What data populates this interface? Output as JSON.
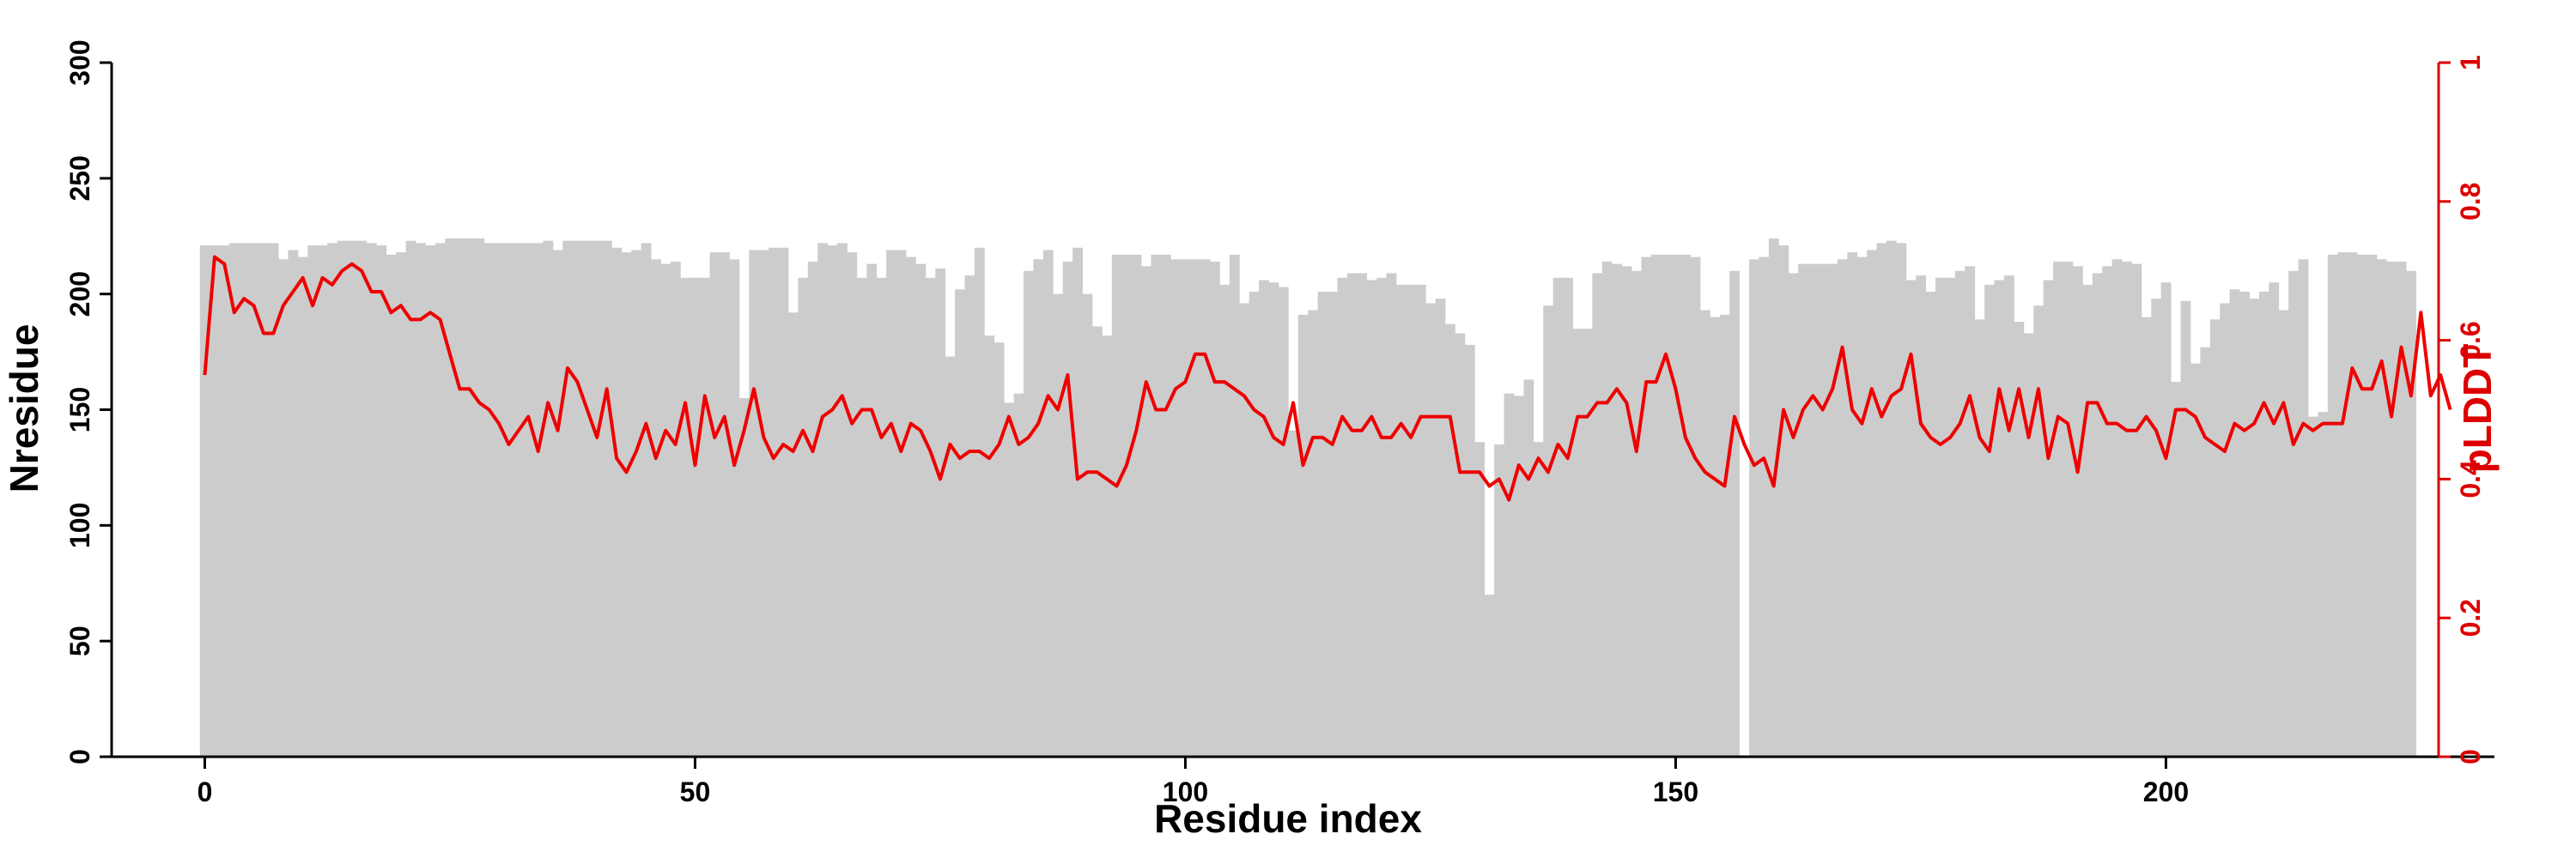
{
  "chart_data": {
    "type": "bar",
    "xlabel": "Residue index",
    "ylabel": "Nresidue",
    "y2label": "pLDDT",
    "xlim": [
      -9,
      234
    ],
    "ylim": [
      0,
      300
    ],
    "y2lim": [
      0,
      1
    ],
    "xticks": [
      0,
      50,
      100,
      150,
      200
    ],
    "yticks": [
      0,
      50,
      100,
      150,
      200,
      250,
      300
    ],
    "y2ticks": [
      0,
      0.2,
      0.4,
      0.6,
      0.8,
      1
    ],
    "xtick_labels": [
      "0",
      "50",
      "100",
      "150",
      "200"
    ],
    "ytick_labels": [
      "0",
      "50",
      "100",
      "150",
      "200",
      "250",
      "300"
    ],
    "y2tick_labels": [
      "0",
      "0.2",
      "0.4",
      "0.6",
      "0.8",
      "1"
    ],
    "colors": {
      "bars": "#cccccc",
      "line": "#ee0000",
      "axis": "#000000",
      "axis2": "#dd0000"
    },
    "series": [
      {
        "kind": "bar",
        "axis": "left",
        "x_start": 0,
        "values": [
          221,
          221,
          221,
          222,
          222,
          222,
          222,
          222,
          215,
          219,
          216,
          221,
          221,
          222,
          223,
          223,
          223,
          222,
          221,
          217,
          218,
          223,
          222,
          221,
          222,
          224,
          224,
          224,
          224,
          222,
          222,
          222,
          222,
          222,
          222,
          223,
          219,
          223,
          223,
          223,
          223,
          223,
          220,
          218,
          219,
          222,
          215,
          213,
          214,
          207,
          207,
          207,
          218,
          218,
          215,
          155,
          219,
          219,
          220,
          220,
          192,
          207,
          214,
          222,
          221,
          222,
          218,
          207,
          213,
          207,
          219,
          219,
          216,
          213,
          207,
          211,
          173,
          202,
          208,
          220,
          182,
          179,
          153,
          157,
          210,
          215,
          219,
          200,
          214,
          220,
          200,
          186,
          182,
          217,
          217,
          217,
          212,
          217,
          217,
          215,
          215,
          215,
          215,
          214,
          204,
          217,
          196,
          201,
          206,
          205,
          203,
          141,
          191,
          193,
          201,
          201,
          207,
          209,
          209,
          206,
          207,
          209,
          204,
          204,
          204,
          196,
          198,
          187,
          183,
          178,
          136,
          70,
          135,
          157,
          156,
          163,
          136,
          195,
          207,
          207,
          185,
          185,
          209,
          214,
          213,
          212,
          210,
          216,
          217,
          217,
          217,
          217,
          216,
          193,
          190,
          191,
          210,
          0,
          215,
          216,
          224,
          221,
          209,
          213,
          213,
          213,
          213,
          215,
          218,
          216,
          219,
          222,
          223,
          222,
          206,
          208,
          201,
          207,
          207,
          210,
          212,
          189,
          204,
          206,
          208,
          188,
          183,
          195,
          206,
          214,
          214,
          212,
          204,
          209,
          212,
          215,
          214,
          213,
          190,
          198,
          205,
          162,
          197,
          170,
          177,
          189,
          196,
          202,
          201,
          198,
          201,
          205,
          193,
          210,
          215,
          147,
          149,
          217,
          218,
          218,
          217,
          217,
          215,
          214,
          214,
          210
        ]
      },
      {
        "kind": "line",
        "axis": "right",
        "x_start": 0,
        "values": [
          0.55,
          0.72,
          0.71,
          0.64,
          0.66,
          0.65,
          0.61,
          0.61,
          0.65,
          0.67,
          0.69,
          0.65,
          0.69,
          0.68,
          0.7,
          0.71,
          0.7,
          0.67,
          0.67,
          0.64,
          0.65,
          0.63,
          0.63,
          0.64,
          0.63,
          0.58,
          0.53,
          0.53,
          0.51,
          0.5,
          0.48,
          0.45,
          0.47,
          0.49,
          0.44,
          0.51,
          0.47,
          0.56,
          0.54,
          0.5,
          0.46,
          0.53,
          0.43,
          0.41,
          0.44,
          0.48,
          0.43,
          0.47,
          0.45,
          0.51,
          0.42,
          0.52,
          0.46,
          0.49,
          0.42,
          0.47,
          0.53,
          0.46,
          0.43,
          0.45,
          0.44,
          0.47,
          0.44,
          0.49,
          0.5,
          0.52,
          0.48,
          0.5,
          0.5,
          0.46,
          0.48,
          0.44,
          0.48,
          0.47,
          0.44,
          0.4,
          0.45,
          0.43,
          0.44,
          0.44,
          0.43,
          0.45,
          0.49,
          0.45,
          0.46,
          0.48,
          0.52,
          0.5,
          0.55,
          0.4,
          0.41,
          0.41,
          0.4,
          0.39,
          0.42,
          0.47,
          0.54,
          0.5,
          0.5,
          0.53,
          0.54,
          0.58,
          0.58,
          0.54,
          0.54,
          0.53,
          0.52,
          0.5,
          0.49,
          0.46,
          0.45,
          0.51,
          0.42,
          0.46,
          0.46,
          0.45,
          0.49,
          0.47,
          0.47,
          0.49,
          0.46,
          0.46,
          0.48,
          0.46,
          0.49,
          0.49,
          0.49,
          0.49,
          0.41,
          0.41,
          0.41,
          0.39,
          0.4,
          0.37,
          0.42,
          0.4,
          0.43,
          0.41,
          0.45,
          0.43,
          0.49,
          0.49,
          0.51,
          0.51,
          0.53,
          0.51,
          0.44,
          0.54,
          0.54,
          0.58,
          0.53,
          0.46,
          0.43,
          0.41,
          0.4,
          0.39,
          0.49,
          0.45,
          0.42,
          0.43,
          0.39,
          0.5,
          0.46,
          0.5,
          0.52,
          0.5,
          0.53,
          0.59,
          0.5,
          0.48,
          0.53,
          0.49,
          0.52,
          0.53,
          0.58,
          0.48,
          0.46,
          0.45,
          0.46,
          0.48,
          0.52,
          0.46,
          0.44,
          0.53,
          0.47,
          0.53,
          0.46,
          0.53,
          0.43,
          0.49,
          0.48,
          0.41,
          0.51,
          0.51,
          0.48,
          0.48,
          0.47,
          0.47,
          0.49,
          0.47,
          0.43,
          0.5,
          0.5,
          0.49,
          0.46,
          0.45,
          0.44,
          0.48,
          0.47,
          0.48,
          0.51,
          0.48,
          0.51,
          0.45,
          0.48,
          0.47,
          0.48,
          0.48,
          0.48,
          0.56,
          0.53,
          0.53,
          0.57,
          0.49,
          0.59,
          0.52,
          0.64,
          0.52,
          0.55,
          0.5
        ]
      }
    ]
  }
}
